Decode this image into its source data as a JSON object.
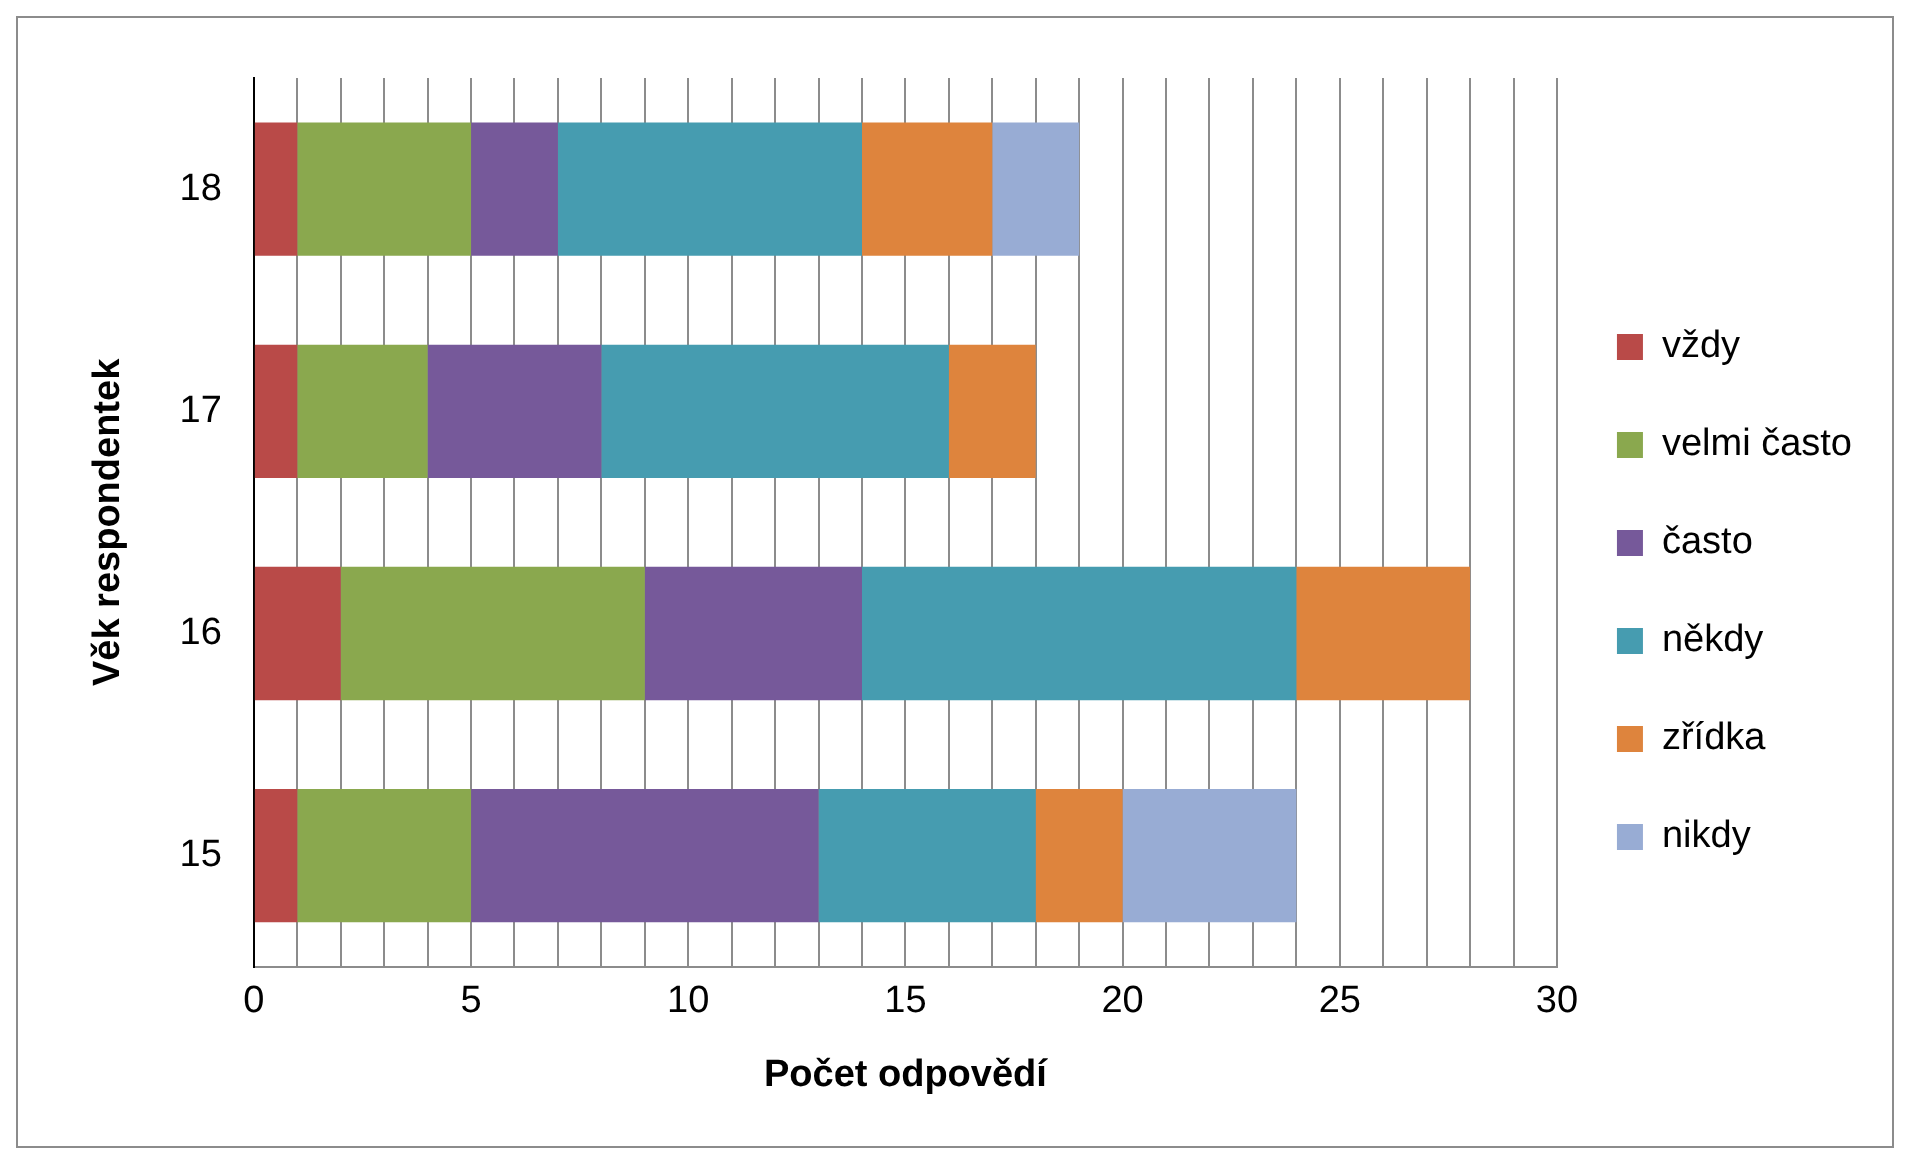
{
  "chart_data": {
    "type": "bar",
    "orientation": "horizontal",
    "stacked": true,
    "xlabel": "Počet odpovědí",
    "ylabel": "Věk respondentek",
    "categories": [
      "18",
      "17",
      "16",
      "15"
    ],
    "series": [
      {
        "name": "vždy",
        "color": "#b94a48",
        "values": [
          1,
          1,
          2,
          1
        ]
      },
      {
        "name": "velmi často",
        "color": "#8aa84e",
        "values": [
          4,
          3,
          7,
          4
        ]
      },
      {
        "name": "často",
        "color": "#76599a",
        "values": [
          2,
          4,
          5,
          8
        ]
      },
      {
        "name": "někdy",
        "color": "#469cb0",
        "values": [
          7,
          8,
          10,
          5
        ]
      },
      {
        "name": "zřídka",
        "color": "#de843d",
        "values": [
          3,
          2,
          4,
          2
        ]
      },
      {
        "name": "nikdy",
        "color": "#98acd4",
        "values": [
          2,
          0,
          0,
          4
        ]
      }
    ],
    "xlim": [
      0,
      30
    ],
    "xticks": [
      0,
      {
        "value": 1,
        "label": null
      },
      {
        "value": 2,
        "label": null
      },
      {
        "value": 3,
        "label": null
      },
      {
        "value": 4,
        "label": null
      },
      5,
      {
        "value": 6,
        "label": null
      },
      {
        "value": 7,
        "label": null
      },
      {
        "value": 8,
        "label": null
      },
      {
        "value": 9,
        "label": null
      },
      10,
      {
        "value": 11,
        "label": null
      },
      {
        "value": 12,
        "label": null
      },
      {
        "value": 13,
        "label": null
      },
      {
        "value": 14,
        "label": null
      },
      15,
      {
        "value": 16,
        "label": null
      },
      {
        "value": 17,
        "label": null
      },
      {
        "value": 18,
        "label": null
      },
      {
        "value": 19,
        "label": null
      },
      20,
      {
        "value": 21,
        "label": null
      },
      {
        "value": 22,
        "label": null
      },
      {
        "value": 23,
        "label": null
      },
      {
        "value": 24,
        "label": null
      },
      25,
      {
        "value": 26,
        "label": null
      },
      {
        "value": 27,
        "label": null
      },
      {
        "value": 28,
        "label": null
      },
      {
        "value": 29,
        "label": null
      },
      30
    ],
    "grid": "x",
    "legend": "right"
  }
}
